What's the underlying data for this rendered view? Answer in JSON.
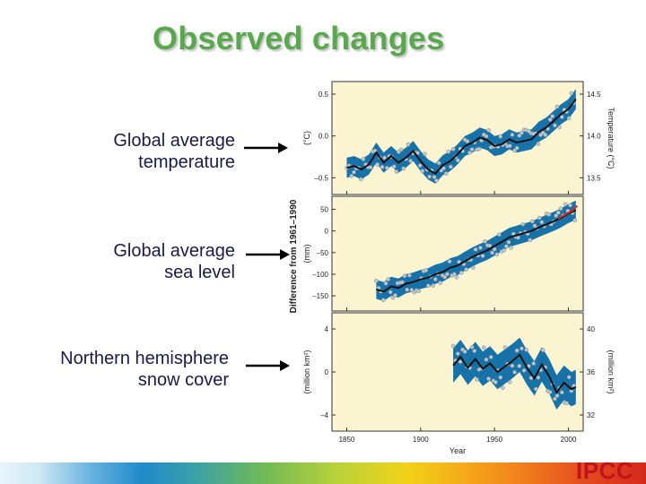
{
  "slide": {
    "title": "Observed changes",
    "labels": {
      "temp": [
        "Global average",
        "temperature"
      ],
      "sea": [
        "Global average",
        "sea level"
      ],
      "snow": [
        "Northern hemisphere",
        "snow cover"
      ]
    },
    "logo": "IPCC"
  },
  "colors": {
    "title": "#5aa84e",
    "label": "#1a1a4d",
    "panel_bg": "#faf5d0",
    "band": "#0b6aa8",
    "line": "#111111",
    "points": "#bfc7cc",
    "sat": "#d62a20",
    "logo": "#c2121c"
  },
  "chart_data": {
    "type": "line",
    "shared_xlabel": "Year",
    "shared_ylabel": "Difference from 1961–1990",
    "xlim": [
      1840,
      2010
    ],
    "x_ticks": [
      1850,
      1900,
      1950,
      2000
    ],
    "panels": [
      {
        "name": "temp",
        "ylabel": "(°C)",
        "ylim": [
          -0.7,
          0.65
        ],
        "y_ticks": [
          0.5,
          0.0,
          -0.5
        ],
        "y_tick_labels": [
          "0.5",
          "0.0",
          "–0.5"
        ],
        "right_ylabel": "Temperature (°C)",
        "right_ticks": [
          14.5,
          14.0,
          13.5
        ],
        "right_tick_labels": [
          "14.5",
          "14.0",
          "13.5"
        ],
        "right_offset": 14.0,
        "band_halfwidth": 0.12,
        "x": [
          1850,
          1855,
          1860,
          1865,
          1870,
          1875,
          1880,
          1885,
          1890,
          1895,
          1900,
          1905,
          1910,
          1915,
          1920,
          1925,
          1930,
          1935,
          1940,
          1945,
          1950,
          1955,
          1960,
          1965,
          1970,
          1975,
          1980,
          1985,
          1990,
          1995,
          2000,
          2005
        ],
        "values": [
          -0.38,
          -0.36,
          -0.4,
          -0.34,
          -0.2,
          -0.32,
          -0.24,
          -0.32,
          -0.26,
          -0.18,
          -0.3,
          -0.4,
          -0.45,
          -0.35,
          -0.3,
          -0.22,
          -0.12,
          -0.08,
          -0.02,
          -0.05,
          -0.12,
          -0.1,
          -0.04,
          -0.08,
          -0.06,
          -0.04,
          0.05,
          0.1,
          0.18,
          0.26,
          0.32,
          0.44
        ]
      },
      {
        "name": "sea",
        "ylabel": "(mm)",
        "ylim": [
          -185,
          80
        ],
        "y_ticks": [
          50,
          0,
          -50,
          -100,
          -150
        ],
        "y_tick_labels": [
          "50",
          "0",
          "–50",
          "–100",
          "–150"
        ],
        "band_halfwidth": 22,
        "x": [
          1870,
          1875,
          1880,
          1885,
          1890,
          1895,
          1900,
          1905,
          1910,
          1915,
          1920,
          1925,
          1930,
          1935,
          1940,
          1945,
          1950,
          1955,
          1960,
          1965,
          1970,
          1975,
          1980,
          1985,
          1990,
          1995,
          2000,
          2005
        ],
        "values": [
          -135,
          -140,
          -128,
          -132,
          -122,
          -118,
          -112,
          -108,
          -100,
          -95,
          -85,
          -80,
          -70,
          -60,
          -52,
          -45,
          -35,
          -25,
          -15,
          -10,
          -5,
          0,
          8,
          15,
          22,
          30,
          40,
          48
        ],
        "satellite": {
          "x": [
            1993,
            1998,
            2003,
            2006
          ],
          "values": [
            28,
            38,
            48,
            58
          ]
        }
      },
      {
        "name": "snow",
        "ylabel": "(million km²)",
        "ylim": [
          -5.5,
          5.5
        ],
        "y_ticks": [
          4,
          0,
          -4
        ],
        "y_tick_labels": [
          "4",
          "0",
          "–4"
        ],
        "right_ylabel": "(million km²)",
        "right_ticks": [
          40,
          36,
          32
        ],
        "right_tick_labels": [
          "40",
          "36",
          "32"
        ],
        "right_offset": 36.0,
        "band_halfwidth": 1.6,
        "x": [
          1922,
          1927,
          1932,
          1937,
          1942,
          1947,
          1952,
          1957,
          1962,
          1967,
          1972,
          1977,
          1982,
          1987,
          1992,
          1997,
          2002,
          2005
        ],
        "values": [
          0.6,
          1.4,
          0.4,
          1.2,
          0.3,
          0.8,
          0.0,
          0.5,
          1.0,
          1.6,
          0.4,
          -0.6,
          0.7,
          -0.4,
          -1.9,
          -1.0,
          -1.6,
          -1.4
        ]
      }
    ]
  }
}
